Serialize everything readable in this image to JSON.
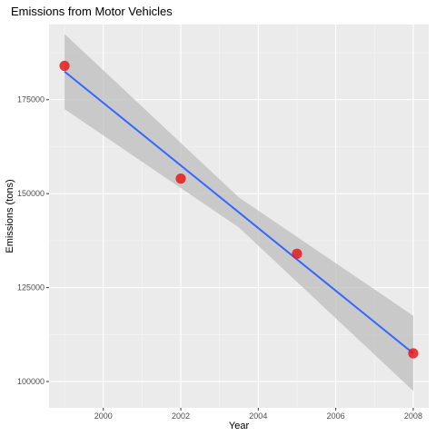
{
  "chart_data": {
    "type": "scatter",
    "title": "Emissions from Motor Vehicles",
    "xlabel": "Year",
    "ylabel": "Emissions (tons)",
    "x_ticks": [
      2000,
      2002,
      2004,
      2006,
      2008
    ],
    "y_ticks": [
      100000,
      125000,
      150000,
      175000
    ],
    "y_tick_labels": [
      "100000",
      "125000",
      "150000",
      "175000"
    ],
    "xlim": [
      1998.6,
      2008.4
    ],
    "ylim": [
      93000,
      195000
    ],
    "grid": true,
    "series": [
      {
        "type": "scatter",
        "color": "#e41a1c",
        "points": [
          {
            "x": 1999,
            "y": 184000
          },
          {
            "x": 2002,
            "y": 154000
          },
          {
            "x": 2005,
            "y": 134000
          },
          {
            "x": 2008,
            "y": 107500
          }
        ]
      },
      {
        "type": "line",
        "smoother": "linear",
        "color": "#3366ff",
        "points": [
          {
            "x": 1999,
            "y": 182500
          },
          {
            "x": 2008,
            "y": 107500
          }
        ],
        "confidence_band": {
          "color": "#bdbdbd",
          "upper": [
            {
              "x": 1999,
              "y": 192500
            },
            {
              "x": 2003.5,
              "y": 149000
            },
            {
              "x": 2008,
              "y": 117500
            }
          ],
          "lower": [
            {
              "x": 1999,
              "y": 172500
            },
            {
              "x": 2003.5,
              "y": 141000
            },
            {
              "x": 2008,
              "y": 97500
            }
          ]
        }
      }
    ]
  }
}
